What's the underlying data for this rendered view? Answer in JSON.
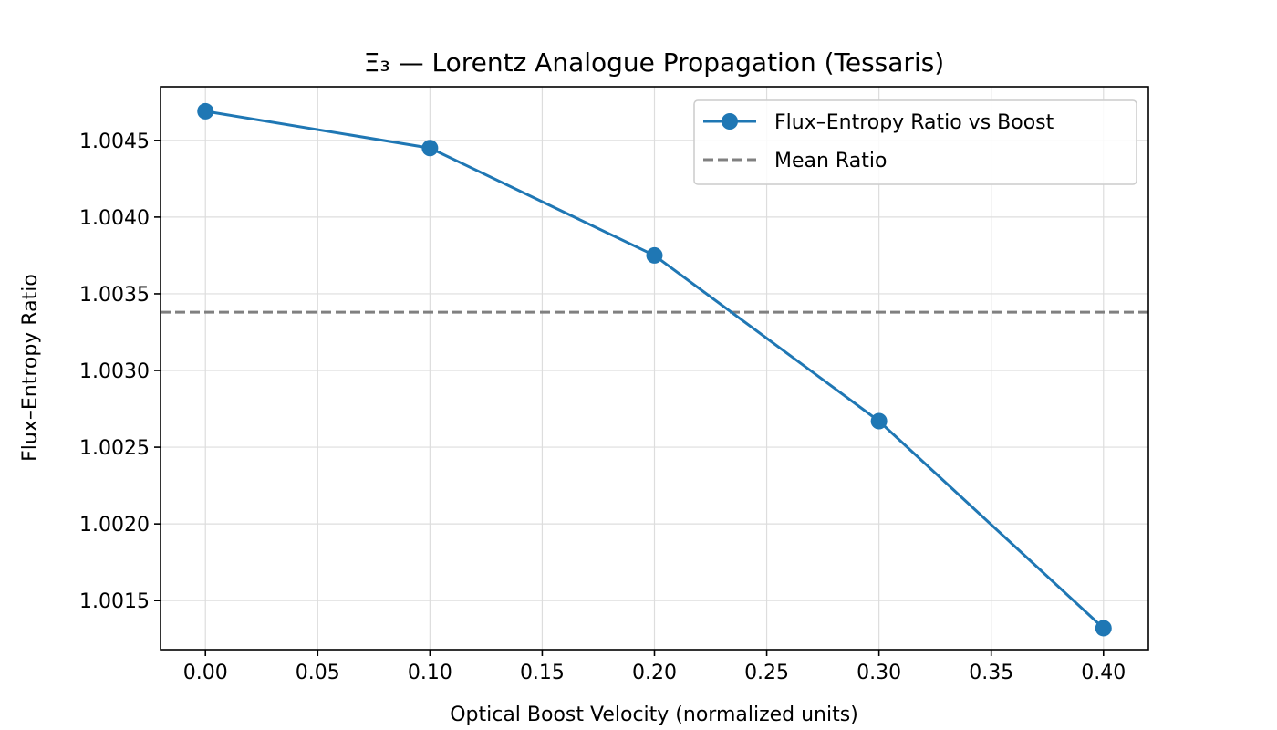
{
  "chart_data": {
    "type": "line",
    "title": "Ξ₃ — Lorentz Analogue Propagation (Tessaris)",
    "xlabel": "Optical Boost Velocity (normalized units)",
    "ylabel": "Flux–Entropy Ratio",
    "xlim": [
      -0.02,
      0.42
    ],
    "ylim": [
      1.00118,
      1.00485
    ],
    "grid": true,
    "legend_position": "top-right",
    "x_ticks": [
      0.0,
      0.05,
      0.1,
      0.15,
      0.2,
      0.25,
      0.3,
      0.35,
      0.4
    ],
    "x_tick_labels": [
      "0.00",
      "0.05",
      "0.10",
      "0.15",
      "0.20",
      "0.25",
      "0.30",
      "0.35",
      "0.40"
    ],
    "y_ticks": [
      1.0015,
      1.002,
      1.0025,
      1.003,
      1.0035,
      1.004,
      1.0045
    ],
    "y_tick_labels": [
      "1.0015",
      "1.0020",
      "1.0025",
      "1.0030",
      "1.0035",
      "1.0040",
      "1.0045"
    ],
    "series": [
      {
        "name": "Flux–Entropy Ratio vs Boost",
        "color": "#1f77b4",
        "style": "solid-marker",
        "x": [
          0.0,
          0.1,
          0.2,
          0.3,
          0.4
        ],
        "y": [
          1.00469,
          1.00445,
          1.00375,
          1.00267,
          1.00132
        ]
      }
    ],
    "reference_lines": [
      {
        "name": "Mean Ratio",
        "color": "#808080",
        "style": "dashed",
        "y": 1.00338
      }
    ]
  }
}
